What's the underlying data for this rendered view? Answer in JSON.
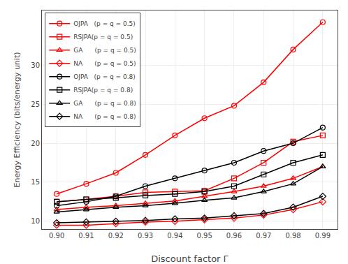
{
  "chart_data": {
    "type": "line",
    "x": [
      0.9,
      0.91,
      0.92,
      0.93,
      0.94,
      0.95,
      0.96,
      0.97,
      0.98,
      0.99
    ],
    "xlabel": "Discount factor Γ",
    "ylabel": "Energy Efficiency (bits/energy unit)",
    "xlim": [
      0.895,
      0.995
    ],
    "xticks": [
      {
        "value": 0.9,
        "label": "0.90"
      },
      0.91,
      0.92,
      0.93,
      0.94,
      0.95,
      0.96,
      0.97,
      0.98,
      0.99
    ],
    "ylim": [
      9.0,
      37.0
    ],
    "yticks": [
      10,
      15,
      20,
      25,
      30
    ],
    "grid": true,
    "legend": "upper left",
    "series": [
      {
        "name": "OJPA   (p = q = 0.5)",
        "color": "#ff0000",
        "marker": "circle",
        "values": [
          13.5,
          14.8,
          16.2,
          18.5,
          21.0,
          23.2,
          24.8,
          27.8,
          32.0,
          35.5
        ]
      },
      {
        "name": "RSJPA(p = q = 0.5)",
        "color": "#ff0000",
        "marker": "square",
        "values": [
          12.5,
          12.8,
          13.2,
          13.7,
          13.8,
          13.9,
          15.5,
          17.5,
          20.2,
          21.0
        ]
      },
      {
        "name": "GA      (p = q = 0.5)",
        "color": "#ff0000",
        "marker": "triangle-up",
        "values": [
          11.5,
          11.8,
          12.0,
          12.3,
          12.6,
          13.2,
          13.8,
          14.5,
          15.5,
          17.0
        ]
      },
      {
        "name": "NA      (p = q = 0.5)",
        "color": "#ff0000",
        "marker": "diamond",
        "values": [
          9.5,
          9.5,
          9.7,
          9.9,
          10.0,
          10.2,
          10.4,
          10.8,
          11.5,
          12.5
        ]
      },
      {
        "name": "OJPA   (p = q = 0.8)",
        "color": "#000000",
        "marker": "circle",
        "values": [
          12.0,
          12.5,
          13.2,
          14.5,
          15.5,
          16.5,
          17.5,
          19.0,
          20.0,
          22.0
        ]
      },
      {
        "name": "RSJPA(p = q = 0.8)",
        "color": "#000000",
        "marker": "square",
        "values": [
          12.5,
          12.8,
          13.0,
          13.3,
          13.5,
          13.8,
          14.5,
          16.0,
          17.5,
          18.5
        ]
      },
      {
        "name": "GA      (p = q = 0.8)",
        "color": "#000000",
        "marker": "triangle-up",
        "values": [
          11.2,
          11.5,
          11.8,
          12.0,
          12.3,
          12.7,
          13.0,
          13.8,
          14.8,
          17.0
        ]
      },
      {
        "name": "NA      (p = q = 0.8)",
        "color": "#000000",
        "marker": "diamond",
        "values": [
          9.8,
          9.9,
          10.0,
          10.1,
          10.3,
          10.4,
          10.7,
          11.0,
          11.8,
          13.2
        ]
      }
    ]
  }
}
